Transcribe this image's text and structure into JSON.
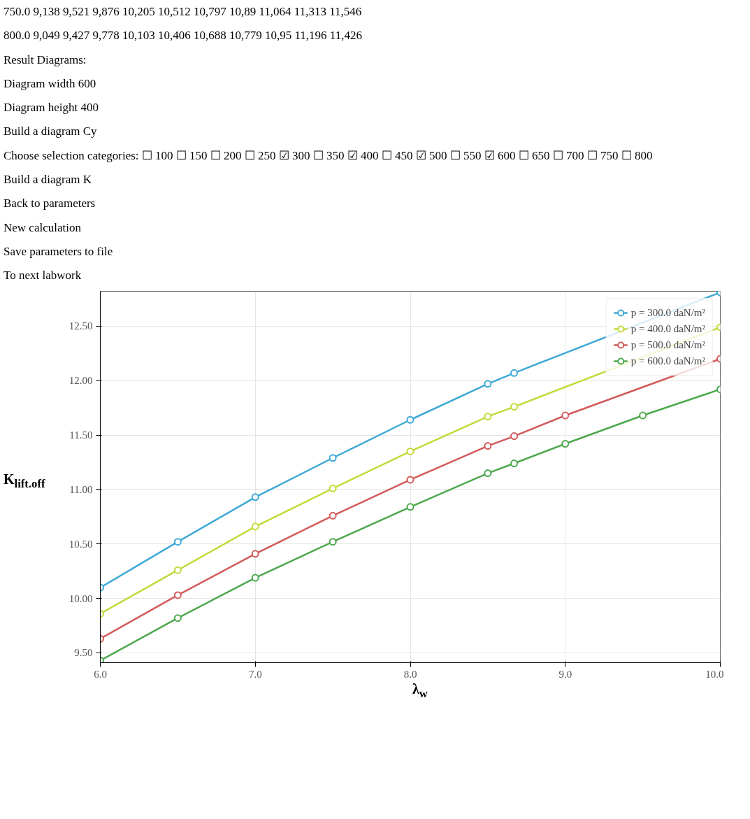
{
  "chart_data": {
    "type": "line",
    "ylabel": "K$_{lift.off}$",
    "xlabel": "λ$_{w}$",
    "series": [
      {
        "name": "p = 300.0 daN/m²",
        "color": "#3fa9d6",
        "x": [
          6,
          6.5,
          7,
          7.5,
          8,
          8.5,
          8.67,
          10
        ],
        "values": [
          10.1,
          10.52,
          10.93,
          11.29,
          11.64,
          11.97,
          12.07,
          12.81
        ]
      },
      {
        "name": "p = 400.0 daN/m²",
        "color": "#c5d93a",
        "x": [
          6,
          6.5,
          7,
          7.5,
          8,
          8.5,
          8.67,
          10
        ],
        "values": [
          9.86,
          10.26,
          10.66,
          11.01,
          11.35,
          11.67,
          11.76,
          12.49
        ]
      },
      {
        "name": "p = 500.0 daN/m²",
        "color": "#d35a5a",
        "x": [
          6,
          6.5,
          7,
          7.5,
          8,
          8.5,
          8.67,
          9,
          10
        ],
        "values": [
          9.63,
          10.03,
          10.41,
          10.76,
          11.09,
          11.4,
          11.49,
          11.68,
          12.2
        ]
      },
      {
        "name": "p = 600.0 daN/m²",
        "color": "#4ea84e",
        "x": [
          6,
          6.5,
          7,
          7.5,
          8,
          8.5,
          8.67,
          9,
          9.5,
          10
        ],
        "values": [
          9.43,
          9.82,
          10.19,
          10.52,
          10.84,
          11.15,
          11.24,
          11.42,
          11.68,
          11.92
        ]
      }
    ],
    "xlim": [
      6,
      10
    ],
    "ylim": [
      9.41,
      12.82
    ],
    "xticks": [
      {
        "value": 6,
        "label": "6.0"
      },
      {
        "value": 7,
        "label": "7.0"
      },
      {
        "value": 8,
        "label": "8.0"
      },
      {
        "value": 9,
        "label": "9.0"
      },
      {
        "value": 10,
        "label": "10.0"
      }
    ],
    "yticks": [
      {
        "value": 9.5,
        "label": "9.50"
      },
      {
        "value": 10,
        "label": "10.00"
      },
      {
        "value": 10.5,
        "label": "10.50"
      },
      {
        "value": 11,
        "label": "11.00"
      },
      {
        "value": 11.5,
        "label": "11.50"
      },
      {
        "value": 12,
        "label": "12.00"
      },
      {
        "value": 12.5,
        "label": "12.50"
      }
    ],
    "grid": true,
    "legend": "top right",
    "marker": "circle",
    "line_style": "solid",
    "annotations": [
      "750.0 9,138 9,521 9,876 10,205 10,512 10,797 10,89 11,064 11,313 11,546",
      "800.0 9,049 9,427 9,778 10,103 10,406 10,688 10,779 10,95 11,196 11,426",
      "Result Diagrams:",
      "Diagram width 600",
      "Diagram height 400",
      "Build a diagram Cy",
      "Choose selection categories: ☐ 100 ☐ 150 ☐ 200 ☐ 250 ☑ 300 ☐ 350 ☑ 400 ☐ 450 ☑ 500 ☐ 550 ☑ 600 ☐ 650 ☐ 700 ☐ 750 ☐ 800",
      "Build a diagram K",
      "Back to parameters",
      "New calculation",
      "Save parameters to file",
      "To next labwork"
    ]
  }
}
